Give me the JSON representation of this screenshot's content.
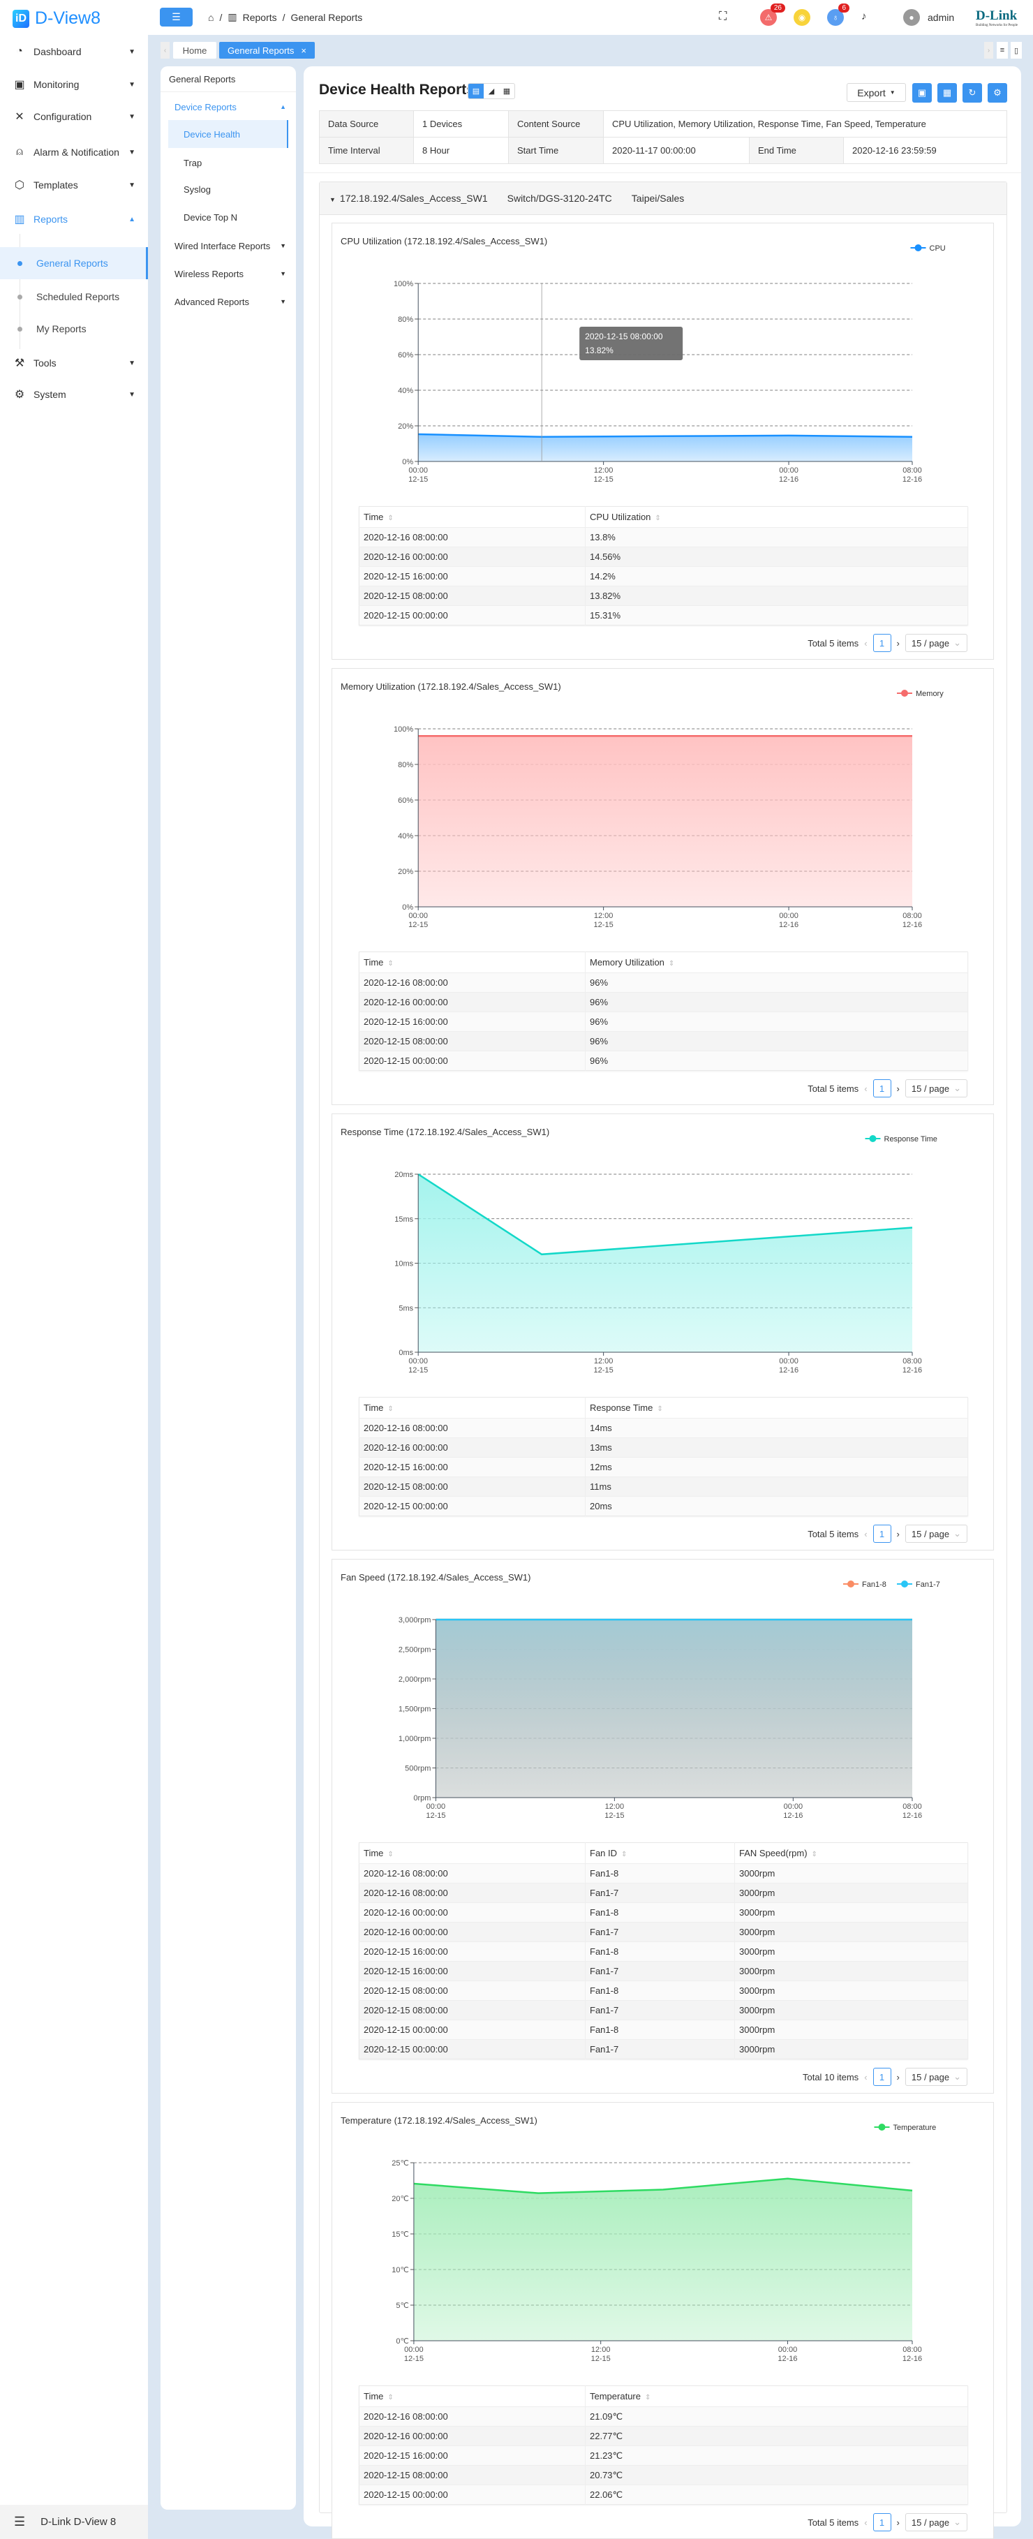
{
  "app": {
    "name": "D-View8",
    "footer": "D-Link D-View 8",
    "brand": "D-Link",
    "brand_tagline": "Building Networks for People"
  },
  "sidebar": {
    "items": [
      {
        "label": "Dashboard",
        "icon": "dashboard-icon"
      },
      {
        "label": "Monitoring",
        "icon": "monitor-icon"
      },
      {
        "label": "Configuration",
        "icon": "tools-icon"
      },
      {
        "label": "Alarm & Notification",
        "icon": "alarm-icon"
      },
      {
        "label": "Templates",
        "icon": "cube-icon"
      },
      {
        "label": "Reports",
        "icon": "reports-icon"
      }
    ],
    "report_sub": [
      "General Reports",
      "Scheduled Reports",
      "My Reports"
    ],
    "items2": [
      {
        "label": "Tools",
        "icon": "tools-icon"
      },
      {
        "label": "System",
        "icon": "gear-icon"
      }
    ]
  },
  "header": {
    "breadcrumb": [
      "Reports",
      "General Reports"
    ],
    "alarm_count": "26",
    "info_count": "6",
    "user": "admin"
  },
  "tabs": {
    "home": "Home",
    "active": "General Reports"
  },
  "subnav": {
    "title": "General Reports",
    "group": "Device Reports",
    "items": [
      "Device Health",
      "Trap",
      "Syslog",
      "Device Top N"
    ],
    "groups": [
      "Wired Interface Reports",
      "Wireless Reports",
      "Advanced Reports"
    ]
  },
  "main": {
    "title": "Device Health Reports",
    "export": "Export",
    "info": {
      "data_source_label": "Data Source",
      "data_source": "1 Devices",
      "content_source_label": "Content Source",
      "content_source": "CPU Utilization, Memory Utilization, Response Time, Fan Speed, Temperature",
      "interval_label": "Time Interval",
      "interval": "8 Hour",
      "start_label": "Start Time",
      "start": "2020-11-17 00:00:00",
      "end_label": "End Time",
      "end": "2020-12-16 23:59:59"
    },
    "device": {
      "name": "172.18.192.4/Sales_Access_SW1",
      "model": "Switch/DGS-3120-24TC",
      "location": "Taipei/Sales"
    }
  },
  "reports": [
    {
      "table": {
        "columns": [
          "Time",
          "CPU Utilization"
        ],
        "rows": [
          [
            "2020-12-16 08:00:00",
            "13.8%"
          ],
          [
            "2020-12-16 00:00:00",
            "14.56%"
          ],
          [
            "2020-12-15 16:00:00",
            "14.2%"
          ],
          [
            "2020-12-15 08:00:00",
            "13.82%"
          ],
          [
            "2020-12-15 00:00:00",
            "15.31%"
          ]
        ]
      },
      "pagination": {
        "total": "Total 5 items",
        "page": "1",
        "size": "15 / page"
      }
    },
    {
      "table": {
        "columns": [
          "Time",
          "Memory Utilization"
        ],
        "rows": [
          [
            "2020-12-16 08:00:00",
            "96%"
          ],
          [
            "2020-12-16 00:00:00",
            "96%"
          ],
          [
            "2020-12-15 16:00:00",
            "96%"
          ],
          [
            "2020-12-15 08:00:00",
            "96%"
          ],
          [
            "2020-12-15 00:00:00",
            "96%"
          ]
        ]
      },
      "pagination": {
        "total": "Total 5 items",
        "page": "1",
        "size": "15 / page"
      }
    },
    {
      "table": {
        "columns": [
          "Time",
          "Response Time"
        ],
        "rows": [
          [
            "2020-12-16 08:00:00",
            "14ms"
          ],
          [
            "2020-12-16 00:00:00",
            "13ms"
          ],
          [
            "2020-12-15 16:00:00",
            "12ms"
          ],
          [
            "2020-12-15 08:00:00",
            "11ms"
          ],
          [
            "2020-12-15 00:00:00",
            "20ms"
          ]
        ]
      },
      "pagination": {
        "total": "Total 5 items",
        "page": "1",
        "size": "15 / page"
      }
    },
    {
      "table": {
        "columns": [
          "Time",
          "Fan ID",
          "FAN Speed(rpm)"
        ],
        "rows": [
          [
            "2020-12-16 08:00:00",
            "Fan1-8",
            "3000rpm"
          ],
          [
            "2020-12-16 08:00:00",
            "Fan1-7",
            "3000rpm"
          ],
          [
            "2020-12-16 00:00:00",
            "Fan1-8",
            "3000rpm"
          ],
          [
            "2020-12-16 00:00:00",
            "Fan1-7",
            "3000rpm"
          ],
          [
            "2020-12-15 16:00:00",
            "Fan1-8",
            "3000rpm"
          ],
          [
            "2020-12-15 16:00:00",
            "Fan1-7",
            "3000rpm"
          ],
          [
            "2020-12-15 08:00:00",
            "Fan1-8",
            "3000rpm"
          ],
          [
            "2020-12-15 08:00:00",
            "Fan1-7",
            "3000rpm"
          ],
          [
            "2020-12-15 00:00:00",
            "Fan1-8",
            "3000rpm"
          ],
          [
            "2020-12-15 00:00:00",
            "Fan1-7",
            "3000rpm"
          ]
        ]
      },
      "pagination": {
        "total": "Total 10 items",
        "page": "1",
        "size": "15 / page"
      }
    },
    {
      "table": {
        "columns": [
          "Time",
          "Temperature"
        ],
        "rows": [
          [
            "2020-12-16 08:00:00",
            "21.09℃"
          ],
          [
            "2020-12-16 00:00:00",
            "22.77℃"
          ],
          [
            "2020-12-15 16:00:00",
            "21.23℃"
          ],
          [
            "2020-12-15 08:00:00",
            "20.73℃"
          ],
          [
            "2020-12-15 00:00:00",
            "22.06℃"
          ]
        ]
      },
      "pagination": {
        "total": "Total 5 items",
        "page": "1",
        "size": "15 / page"
      }
    }
  ],
  "chart_data": [
    {
      "type": "area",
      "title": "CPU Utilization (172.18.192.4/Sales_Access_SW1)",
      "xlim": [
        "2020-12-15 00:00",
        "2020-12-16 08:00"
      ],
      "x": [
        "2020-12-15 00:00",
        "2020-12-15 08:00",
        "2020-12-15 16:00",
        "2020-12-16 00:00",
        "2020-12-16 08:00"
      ],
      "x_ticks": [
        {
          "at": "2020-12-15 00:00",
          "time": "00:00",
          "date": "12-15"
        },
        {
          "at": "2020-12-15 12:00",
          "time": "12:00",
          "date": "12-15"
        },
        {
          "at": "2020-12-16 00:00",
          "time": "00:00",
          "date": "12-16"
        },
        {
          "at": "2020-12-16 08:00",
          "time": "08:00",
          "date": "12-16"
        }
      ],
      "ylim": [
        0,
        100
      ],
      "y_ticks": [
        {
          "value": 0,
          "label": "0%"
        },
        {
          "value": 20,
          "label": "20%"
        },
        {
          "value": 40,
          "label": "40%"
        },
        {
          "value": 60,
          "label": "60%"
        },
        {
          "value": 80,
          "label": "80%"
        },
        {
          "value": 100,
          "label": "100%"
        }
      ],
      "grid": true,
      "legend": "top-right",
      "series": [
        {
          "name": "CPU",
          "values": [
            15.31,
            13.82,
            14.2,
            14.56,
            13.8
          ],
          "color": "#1890ff",
          "fill": "#8fcbff"
        }
      ],
      "tooltip": {
        "at": "2020-12-15 08:00",
        "title": "2020-12-15 08:00:00",
        "value": "13.82%"
      }
    },
    {
      "type": "area",
      "title": "Memory Utilization (172.18.192.4/Sales_Access_SW1)",
      "xlim": [
        "2020-12-15 00:00",
        "2020-12-16 08:00"
      ],
      "x": [
        "2020-12-15 00:00",
        "2020-12-15 08:00",
        "2020-12-15 16:00",
        "2020-12-16 00:00",
        "2020-12-16 08:00"
      ],
      "x_ticks": [
        {
          "at": "2020-12-15 00:00",
          "time": "00:00",
          "date": "12-15"
        },
        {
          "at": "2020-12-15 12:00",
          "time": "12:00",
          "date": "12-15"
        },
        {
          "at": "2020-12-16 00:00",
          "time": "00:00",
          "date": "12-16"
        },
        {
          "at": "2020-12-16 08:00",
          "time": "08:00",
          "date": "12-16"
        }
      ],
      "ylim": [
        0,
        100
      ],
      "y_ticks": [
        {
          "value": 0,
          "label": "0%"
        },
        {
          "value": 20,
          "label": "20%"
        },
        {
          "value": 40,
          "label": "40%"
        },
        {
          "value": 60,
          "label": "60%"
        },
        {
          "value": 80,
          "label": "80%"
        },
        {
          "value": 100,
          "label": "100%"
        }
      ],
      "grid": true,
      "legend": "top-right",
      "series": [
        {
          "name": "Memory",
          "values": [
            96,
            96,
            96,
            96,
            96
          ],
          "color": "#f56c6c",
          "fill": "#ffc0c0"
        }
      ]
    },
    {
      "type": "area",
      "title": "Response Time (172.18.192.4/Sales_Access_SW1)",
      "xlim": [
        "2020-12-15 00:00",
        "2020-12-16 08:00"
      ],
      "x": [
        "2020-12-15 00:00",
        "2020-12-15 08:00",
        "2020-12-15 16:00",
        "2020-12-16 00:00",
        "2020-12-16 08:00"
      ],
      "x_ticks": [
        {
          "at": "2020-12-15 00:00",
          "time": "00:00",
          "date": "12-15"
        },
        {
          "at": "2020-12-15 12:00",
          "time": "12:00",
          "date": "12-15"
        },
        {
          "at": "2020-12-16 00:00",
          "time": "00:00",
          "date": "12-16"
        },
        {
          "at": "2020-12-16 08:00",
          "time": "08:00",
          "date": "12-16"
        }
      ],
      "ylim": [
        0,
        20
      ],
      "y_ticks": [
        {
          "value": 0,
          "label": "0ms"
        },
        {
          "value": 5,
          "label": "5ms"
        },
        {
          "value": 10,
          "label": "10ms"
        },
        {
          "value": 15,
          "label": "15ms"
        },
        {
          "value": 20,
          "label": "20ms"
        }
      ],
      "grid": true,
      "legend": "top-right",
      "series": [
        {
          "name": "Response Time",
          "values": [
            20,
            11,
            12,
            13,
            14
          ],
          "color": "#13d8c8",
          "fill": "#9ff3ec"
        }
      ]
    },
    {
      "type": "area",
      "title": "Fan Speed (172.18.192.4/Sales_Access_SW1)",
      "xlim": [
        "2020-12-15 00:00",
        "2020-12-16 08:00"
      ],
      "x": [
        "2020-12-15 00:00",
        "2020-12-15 08:00",
        "2020-12-15 16:00",
        "2020-12-16 00:00",
        "2020-12-16 08:00"
      ],
      "x_ticks": [
        {
          "at": "2020-12-15 00:00",
          "time": "00:00",
          "date": "12-15"
        },
        {
          "at": "2020-12-15 12:00",
          "time": "12:00",
          "date": "12-15"
        },
        {
          "at": "2020-12-16 00:00",
          "time": "00:00",
          "date": "12-16"
        },
        {
          "at": "2020-12-16 08:00",
          "time": "08:00",
          "date": "12-16"
        }
      ],
      "ylim": [
        0,
        3000
      ],
      "y_ticks": [
        {
          "value": 0,
          "label": "0rpm"
        },
        {
          "value": 500,
          "label": "500rpm"
        },
        {
          "value": 1000,
          "label": "1,000rpm"
        },
        {
          "value": 1500,
          "label": "1,500rpm"
        },
        {
          "value": 2000,
          "label": "2,000rpm"
        },
        {
          "value": 2500,
          "label": "2,500rpm"
        },
        {
          "value": 3000,
          "label": "3,000rpm"
        }
      ],
      "grid": true,
      "legend": "top-right",
      "series": [
        {
          "name": "Fan1-8",
          "values": [
            3000,
            3000,
            3000,
            3000,
            3000
          ],
          "color": "#fa8c64",
          "fill": "#f6c2ae"
        },
        {
          "name": "Fan1-7",
          "values": [
            3000,
            3000,
            3000,
            3000,
            3000
          ],
          "color": "#29c5f6",
          "fill": "#9fcad6"
        }
      ]
    },
    {
      "type": "area",
      "title": "Temperature (172.18.192.4/Sales_Access_SW1)",
      "xlim": [
        "2020-12-15 00:00",
        "2020-12-16 08:00"
      ],
      "x": [
        "2020-12-15 00:00",
        "2020-12-15 08:00",
        "2020-12-15 16:00",
        "2020-12-16 00:00",
        "2020-12-16 08:00"
      ],
      "x_ticks": [
        {
          "at": "2020-12-15 00:00",
          "time": "00:00",
          "date": "12-15"
        },
        {
          "at": "2020-12-15 12:00",
          "time": "12:00",
          "date": "12-15"
        },
        {
          "at": "2020-12-16 00:00",
          "time": "00:00",
          "date": "12-16"
        },
        {
          "at": "2020-12-16 08:00",
          "time": "08:00",
          "date": "12-16"
        }
      ],
      "ylim": [
        0,
        25
      ],
      "y_ticks": [
        {
          "value": 0,
          "label": "0℃"
        },
        {
          "value": 5,
          "label": "5℃"
        },
        {
          "value": 10,
          "label": "10℃"
        },
        {
          "value": 15,
          "label": "15℃"
        },
        {
          "value": 20,
          "label": "20℃"
        },
        {
          "value": 25,
          "label": "25℃"
        }
      ],
      "grid": true,
      "legend": "top-right",
      "series": [
        {
          "name": "Temperature",
          "values": [
            22.06,
            20.73,
            21.23,
            22.77,
            21.09
          ],
          "color": "#2edb62",
          "fill": "#a6edba"
        }
      ]
    }
  ]
}
